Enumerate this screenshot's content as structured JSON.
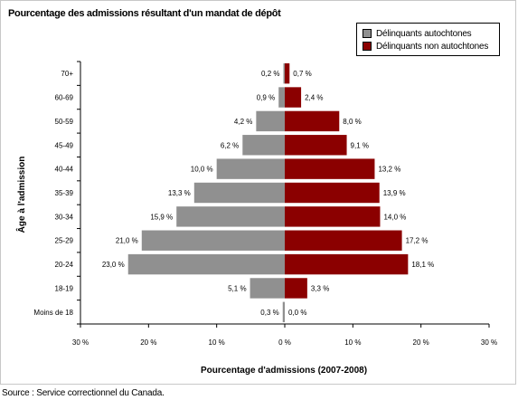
{
  "title": "Pourcentage des admissions résultant d'un mandat de dépôt",
  "source": "Source : Service correctionnel du Canada.",
  "colors": {
    "autochtones": "#909090",
    "non_autochtones": "#8b0000",
    "axis": "#000000"
  },
  "legend": {
    "items": [
      {
        "label": "Délinquants autochtones",
        "color": "#909090"
      },
      {
        "label": "Délinquants non autochtones",
        "color": "#8b0000"
      }
    ]
  },
  "chart_data": {
    "type": "bar",
    "orientation": "horizontal",
    "title": "Pourcentage des admissions résultant d'un mandat de dépôt",
    "xlabel": "Pourcentage d'admissions (2007-2008)",
    "ylabel": "Âge à l'admission",
    "xlim": [
      -30,
      30
    ],
    "xticks": [
      -30,
      -20,
      -10,
      0,
      10,
      20,
      30
    ],
    "xtick_labels": [
      "30 %",
      "20 %",
      "10 %",
      "0 %",
      "10 %",
      "20 %",
      "30 %"
    ],
    "categories": [
      "70+",
      "60-69",
      "50-59",
      "45-49",
      "40-44",
      "35-39",
      "30-34",
      "25-29",
      "20-24",
      "18-19",
      "Moins de 18"
    ],
    "series": [
      {
        "name": "Délinquants autochtones",
        "side": "left",
        "values": [
          0.2,
          0.9,
          4.2,
          6.2,
          10.0,
          13.3,
          15.9,
          21.0,
          23.0,
          5.1,
          0.3
        ],
        "labels": [
          "0,2 %",
          "0,9 %",
          "4,2 %",
          "6,2 %",
          "10,0 %",
          "13,3 %",
          "15,9 %",
          "21,0 %",
          "23,0 %",
          "5,1 %",
          "0,3 %"
        ]
      },
      {
        "name": "Délinquants non autochtones",
        "side": "right",
        "values": [
          0.7,
          2.4,
          8.0,
          9.1,
          13.2,
          13.9,
          14.0,
          17.2,
          18.1,
          3.3,
          0.0
        ],
        "labels": [
          "0,7 %",
          "2,4 %",
          "8,0 %",
          "9,1 %",
          "13,2 %",
          "13,9 %",
          "14,0 %",
          "17,2 %",
          "18,1 %",
          "3,3 %",
          "0,0 %"
        ]
      }
    ],
    "grid": false,
    "legend_position": "top-right"
  }
}
